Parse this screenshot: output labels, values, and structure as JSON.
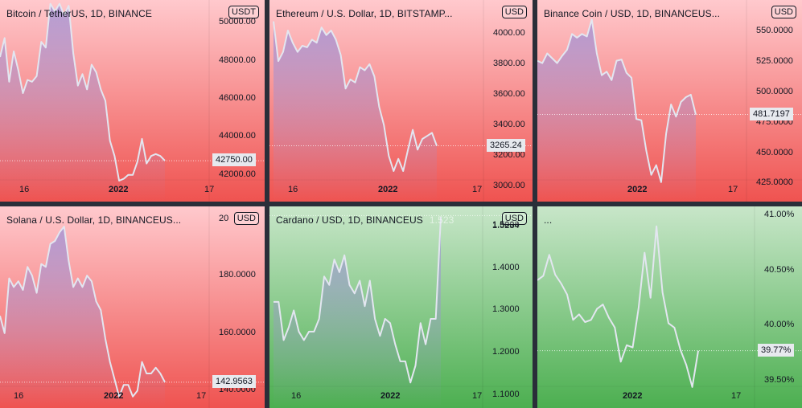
{
  "colors": {
    "red_top": "#ffc9cd",
    "red_bottom": "#ef5350",
    "green_top": "#c8e6c9",
    "green_bottom": "#4caf50",
    "line": "#e3e6f0"
  },
  "chart_data": [
    {
      "type": "area",
      "title": "Bitcoin / TetherUS, 1D, BINANCE",
      "currency": "USDT",
      "theme": "red",
      "ylim": [
        40600,
        51200
      ],
      "yticks": [
        42000,
        44000,
        46000,
        48000,
        50000
      ],
      "ytick_labels": [
        "42000.00",
        "44000.00",
        "46000.00",
        "48000.00",
        "50000.00"
      ],
      "last_value": 42750,
      "last_label": "42750.00",
      "xticks": [
        {
          "label": "16",
          "pos": 0.09,
          "bold": false
        },
        {
          "label": "2022",
          "pos": 0.43,
          "bold": true
        },
        {
          "label": "17",
          "pos": 0.79,
          "bold": false
        }
      ],
      "values": [
        48200,
        49200,
        46900,
        48500,
        47500,
        46300,
        47000,
        46900,
        47200,
        49000,
        48700,
        51000,
        50600,
        51000,
        50400,
        50900,
        48400,
        46700,
        47300,
        46500,
        47800,
        47400,
        46500,
        45900,
        43800,
        43000,
        41700,
        41800,
        42000,
        42000,
        42700,
        43900,
        42600,
        43000,
        43100,
        43000,
        42750
      ]
    },
    {
      "type": "area",
      "title": "Ethereum / U.S. Dollar, 1D, BITSTAMP...",
      "currency": "USD",
      "theme": "red",
      "ylim": [
        2900,
        4220
      ],
      "yticks": [
        3000,
        3200,
        3400,
        3600,
        3800,
        4000
      ],
      "ytick_labels": [
        "3000.00",
        "3200.00",
        "3400.00",
        "3600.00",
        "3800.00",
        "4000.00"
      ],
      "last_value": 3265.24,
      "last_label": "3265.24",
      "xticks": [
        {
          "label": "16",
          "pos": 0.09,
          "bold": false
        },
        {
          "label": "2022",
          "pos": 0.43,
          "bold": true
        },
        {
          "label": "17",
          "pos": 0.79,
          "bold": false
        }
      ],
      "values": [
        4080,
        3820,
        3880,
        4020,
        3940,
        3880,
        3920,
        3910,
        3960,
        3940,
        4040,
        3990,
        4020,
        3960,
        3860,
        3640,
        3700,
        3680,
        3780,
        3760,
        3800,
        3720,
        3520,
        3400,
        3200,
        3100,
        3180,
        3100,
        3240,
        3370,
        3240,
        3310,
        3330,
        3350,
        3265
      ]
    },
    {
      "type": "area",
      "title": "Binance Coin / USD, 1D, BINANCEUS...",
      "currency": "USD",
      "theme": "red",
      "ylim": [
        410,
        576
      ],
      "yticks": [
        425,
        450,
        475,
        500,
        525,
        550
      ],
      "ytick_labels": [
        "425.0000",
        "450.0000",
        "475.0000",
        "500.0000",
        "525.0000",
        "550.0000"
      ],
      "last_value": 481.7197,
      "last_label": "481.7197",
      "xticks": [
        {
          "label": "2022",
          "pos": 0.36,
          "bold": true
        },
        {
          "label": "17",
          "pos": 0.74,
          "bold": false
        }
      ],
      "values": [
        526,
        524,
        532,
        528,
        524,
        530,
        535,
        548,
        545,
        548,
        546,
        560,
        532,
        514,
        517,
        510,
        526,
        527,
        516,
        512,
        478,
        477,
        452,
        432,
        440,
        426,
        466,
        490,
        480,
        492,
        496,
        498,
        481.7
      ]
    },
    {
      "type": "area",
      "title": "Solana / U.S. Dollar, 1D, BINANCEUS...",
      "currency": "USD",
      "theme": "red",
      "ylim": [
        134,
        204
      ],
      "yticks": [
        140,
        160,
        180
      ],
      "ytick_labels": [
        "140.0000",
        "160.0000",
        "180.0000"
      ],
      "top_label": "20",
      "last_value": 142.9563,
      "last_label": "142.9563",
      "xticks": [
        {
          "label": "16",
          "pos": 0.07,
          "bold": false
        },
        {
          "label": "2022",
          "pos": 0.41,
          "bold": true
        },
        {
          "label": "17",
          "pos": 0.76,
          "bold": false
        }
      ],
      "values": [
        166,
        160,
        179,
        176,
        178,
        175,
        183,
        180,
        174,
        184,
        183,
        191,
        192,
        195,
        197,
        185,
        176,
        179,
        176,
        180,
        178,
        171,
        168,
        158,
        150,
        144,
        138,
        142,
        142,
        138,
        140,
        150,
        146,
        146,
        148,
        146,
        142.95
      ]
    },
    {
      "type": "area",
      "title": "Cardano / USD, 1D, BINANCEUS",
      "overlay": "1.523",
      "currency": "USD",
      "theme": "green",
      "ylim": [
        1.07,
        1.545
      ],
      "yticks": [
        1.1,
        1.2,
        1.3,
        1.4,
        1.5
      ],
      "ytick_labels": [
        "1.1000",
        "1.2000",
        "1.3000",
        "1.4000",
        "1.5000"
      ],
      "top_label": "1.5234",
      "last_value": 1.5234,
      "xticks": [
        {
          "label": "16",
          "pos": 0.1,
          "bold": false
        },
        {
          "label": "2022",
          "pos": 0.44,
          "bold": true
        },
        {
          "label": "17",
          "pos": 0.79,
          "bold": false
        }
      ],
      "values": [
        1.32,
        1.32,
        1.23,
        1.26,
        1.3,
        1.25,
        1.23,
        1.25,
        1.25,
        1.28,
        1.38,
        1.36,
        1.42,
        1.39,
        1.43,
        1.36,
        1.34,
        1.37,
        1.31,
        1.37,
        1.28,
        1.24,
        1.28,
        1.27,
        1.22,
        1.18,
        1.18,
        1.13,
        1.17,
        1.27,
        1.22,
        1.28,
        1.28,
        1.52
      ]
    },
    {
      "type": "line",
      "title": "...",
      "theme": "green",
      "ylim": [
        39.25,
        41.08
      ],
      "yticks": [
        39.5,
        40.0,
        40.5,
        41.0
      ],
      "ytick_labels": [
        "39.50%",
        "40.00%",
        "40.50%",
        "41.00%"
      ],
      "last_value": 39.77,
      "last_label": "39.77%",
      "xticks": [
        {
          "label": "2022",
          "pos": 0.34,
          "bold": true
        },
        {
          "label": "17",
          "pos": 0.75,
          "bold": false
        }
      ],
      "values": [
        40.41,
        40.45,
        40.64,
        40.46,
        40.38,
        40.28,
        40.05,
        40.1,
        40.03,
        40.05,
        40.15,
        40.19,
        40.07,
        39.98,
        39.67,
        39.82,
        39.8,
        40.16,
        40.66,
        40.25,
        40.9,
        40.3,
        40.02,
        39.98,
        39.78,
        39.64,
        39.44,
        39.77
      ]
    }
  ]
}
